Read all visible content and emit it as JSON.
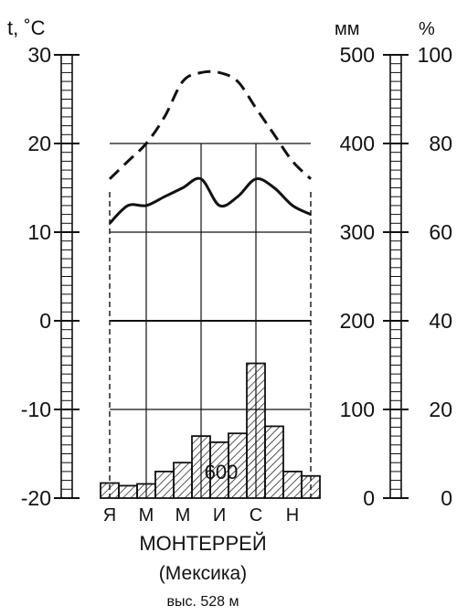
{
  "chart_data": {
    "type": "bar",
    "title": "МОНТЕРРЕЙ",
    "subtitle": "(Мексика)",
    "elevation": "выс. 528 м",
    "annual_total_label": "600",
    "axes": {
      "temperature": {
        "label": "t, ˚C",
        "ticks": [
          "30",
          "20",
          "10",
          "0",
          "-10",
          "-20"
        ],
        "range": [
          -20,
          30
        ]
      },
      "precipitation": {
        "label": "мм",
        "ticks": [
          "500",
          "400",
          "300",
          "200",
          "100",
          "0"
        ],
        "range": [
          0,
          500
        ]
      },
      "humidity": {
        "label": "%",
        "ticks": [
          "100",
          "80",
          "60",
          "40",
          "20",
          "0"
        ],
        "range": [
          0,
          100
        ]
      }
    },
    "month_labels": [
      "Я",
      "М",
      "М",
      "И",
      "С",
      "Н"
    ],
    "months": 12,
    "grid": true,
    "series": [
      {
        "kind": "bar",
        "axis": "precipitation",
        "values": [
          17,
          14,
          16,
          30,
          40,
          70,
          63,
          73,
          152,
          81,
          30,
          25
        ]
      },
      {
        "kind": "line",
        "style": "solid",
        "axis": "temperature",
        "values": [
          11,
          13,
          13,
          14,
          15,
          16,
          13,
          14,
          16,
          15,
          13,
          12
        ]
      },
      {
        "kind": "line",
        "style": "dashed",
        "axis": "temperature",
        "values": [
          16,
          18,
          20,
          23,
          27,
          28,
          28,
          27,
          24,
          21,
          18,
          16
        ]
      }
    ]
  }
}
